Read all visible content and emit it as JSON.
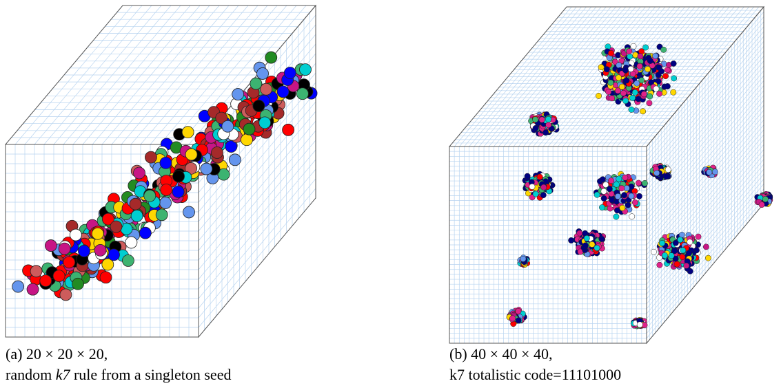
{
  "figure": {
    "panels": [
      {
        "caption_line1": "(a) 20 × 20 × 20,",
        "caption_line2": [
          "random ",
          "k7",
          " rule from a singleton seed"
        ]
      },
      {
        "caption_line1": "(b) 40 × 40 × 40,",
        "caption_line2": [
          "k7 totalistic code=11101000"
        ]
      }
    ]
  }
}
